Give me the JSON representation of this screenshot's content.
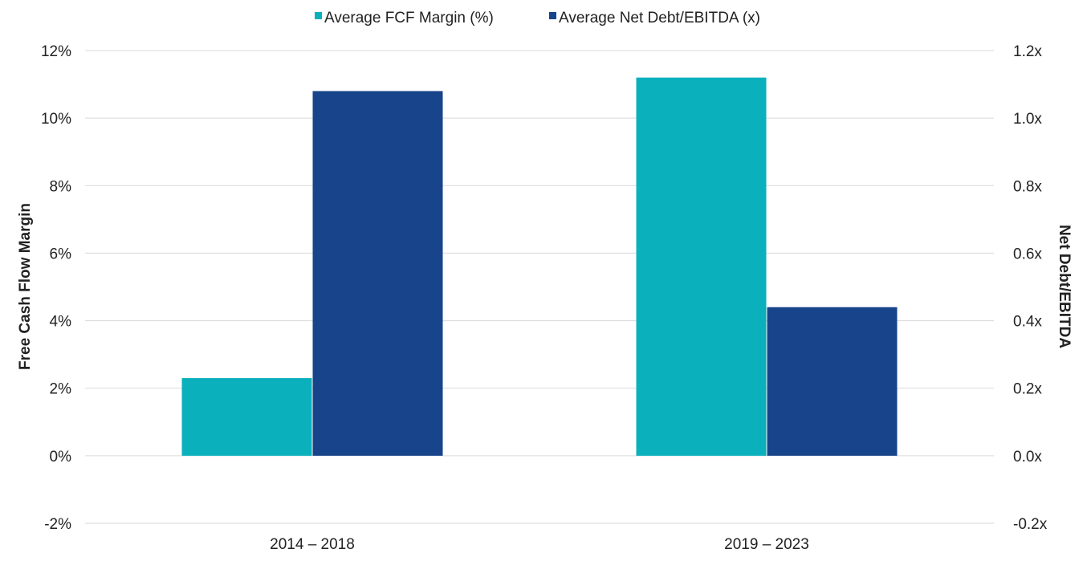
{
  "chart_data": {
    "type": "bar",
    "categories": [
      "2014 – 2018",
      "2019 – 2023"
    ],
    "series": [
      {
        "name": "Average FCF Margin (%)",
        "axis": "left",
        "values": [
          2.3,
          11.2
        ],
        "color": "#0bb0bd"
      },
      {
        "name": "Average Net Debt/EBITDA (x)",
        "axis": "right",
        "values": [
          1.08,
          0.44
        ],
        "color": "#17448a"
      }
    ],
    "y_left": {
      "label": "Free Cash Flow Margin",
      "range": [
        -2,
        12
      ],
      "ticks": [
        -2,
        0,
        2,
        4,
        6,
        8,
        10,
        12
      ],
      "tick_labels": [
        "-2%",
        "0%",
        "2%",
        "4%",
        "6%",
        "8%",
        "10%",
        "12%"
      ]
    },
    "y_right": {
      "label": "Net Debt/EBITDA",
      "range": [
        -0.2,
        1.2
      ],
      "ticks": [
        -0.2,
        0.0,
        0.2,
        0.4,
        0.6,
        0.8,
        1.0,
        1.2
      ],
      "tick_labels": [
        "-0.2x",
        "0.0x",
        "0.2x",
        "0.4x",
        "0.6x",
        "0.8x",
        "1.0x",
        "1.2x"
      ]
    },
    "grid": true,
    "legend_position": "top-center",
    "gridline_color": "#d9d9d9"
  }
}
